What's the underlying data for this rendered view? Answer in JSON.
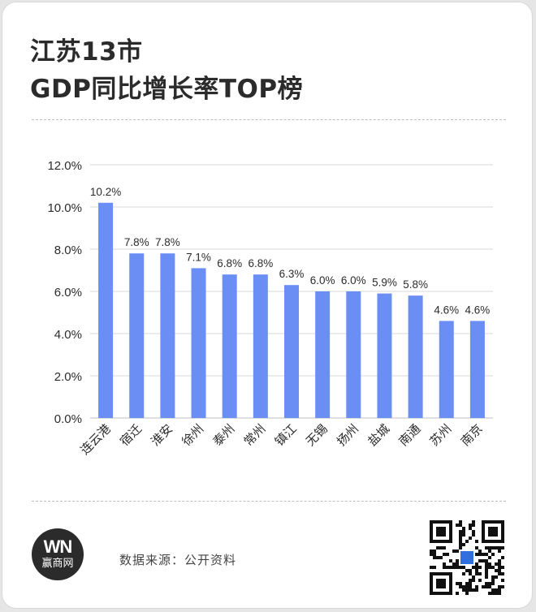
{
  "title": {
    "line1": "江苏13市",
    "line2": "GDP同比增长率TOP榜"
  },
  "footer": {
    "logo_mark": "WN",
    "logo_name": "赢商网",
    "source": "数据来源：公开资料"
  },
  "colors": {
    "bar": "#6b8ef5",
    "text": "#2b2b2b",
    "grid": "#d9d9d9"
  },
  "chart_data": {
    "type": "bar",
    "title": "",
    "xlabel": "",
    "ylabel": "",
    "ylim": [
      0,
      12
    ],
    "yticks": [
      "0.0%",
      "2.0%",
      "4.0%",
      "6.0%",
      "8.0%",
      "10.0%",
      "12.0%"
    ],
    "grid": true,
    "categories": [
      "连云港",
      "宿迁",
      "淮安",
      "徐州",
      "泰州",
      "常州",
      "镇江",
      "无锡",
      "扬州",
      "盐城",
      "南通",
      "苏州",
      "南京"
    ],
    "values": [
      10.2,
      7.8,
      7.8,
      7.1,
      6.8,
      6.8,
      6.3,
      6.0,
      6.0,
      5.9,
      5.8,
      4.6,
      4.6
    ],
    "value_labels": [
      "10.2%",
      "7.8%",
      "7.8%",
      "7.1%",
      "6.8%",
      "6.8%",
      "6.3%",
      "6.0%",
      "6.0%",
      "5.9%",
      "5.8%",
      "4.6%",
      "4.6%"
    ]
  }
}
